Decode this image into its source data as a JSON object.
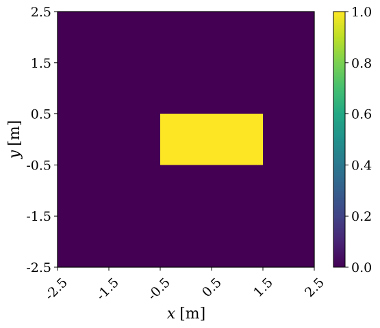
{
  "chart_data": {
    "type": "heatmap",
    "xlabel_var": "x",
    "xlabel_unit": "[m]",
    "ylabel_var": "y",
    "ylabel_unit": "[m]",
    "xlim": [
      -2.5,
      2.5
    ],
    "ylim": [
      -2.5,
      2.5
    ],
    "x_ticks": [
      "-2.5",
      "-1.5",
      "-0.5",
      "0.5",
      "1.5",
      "2.5"
    ],
    "y_ticks": [
      "-2.5",
      "-1.5",
      "-0.5",
      "0.5",
      "1.5",
      "2.5"
    ],
    "x_tick_values": [
      -2.5,
      -1.5,
      -0.5,
      0.5,
      1.5,
      2.5
    ],
    "y_tick_values": [
      -2.5,
      -1.5,
      -0.5,
      0.5,
      1.5,
      2.5
    ],
    "background_value": 0.0,
    "regions": [
      {
        "x_range": [
          -0.5,
          1.5
        ],
        "y_range": [
          -0.5,
          0.5
        ],
        "value": 1.0
      }
    ],
    "colorbar": {
      "colormap": "viridis",
      "range": [
        0.0,
        1.0
      ],
      "ticks": [
        "0.0",
        "0.2",
        "0.4",
        "0.6",
        "0.8",
        "1.0"
      ],
      "tick_values": [
        0.0,
        0.2,
        0.4,
        0.6,
        0.8,
        1.0
      ]
    },
    "colors": {
      "low": "#440154",
      "high": "#fde725"
    }
  }
}
